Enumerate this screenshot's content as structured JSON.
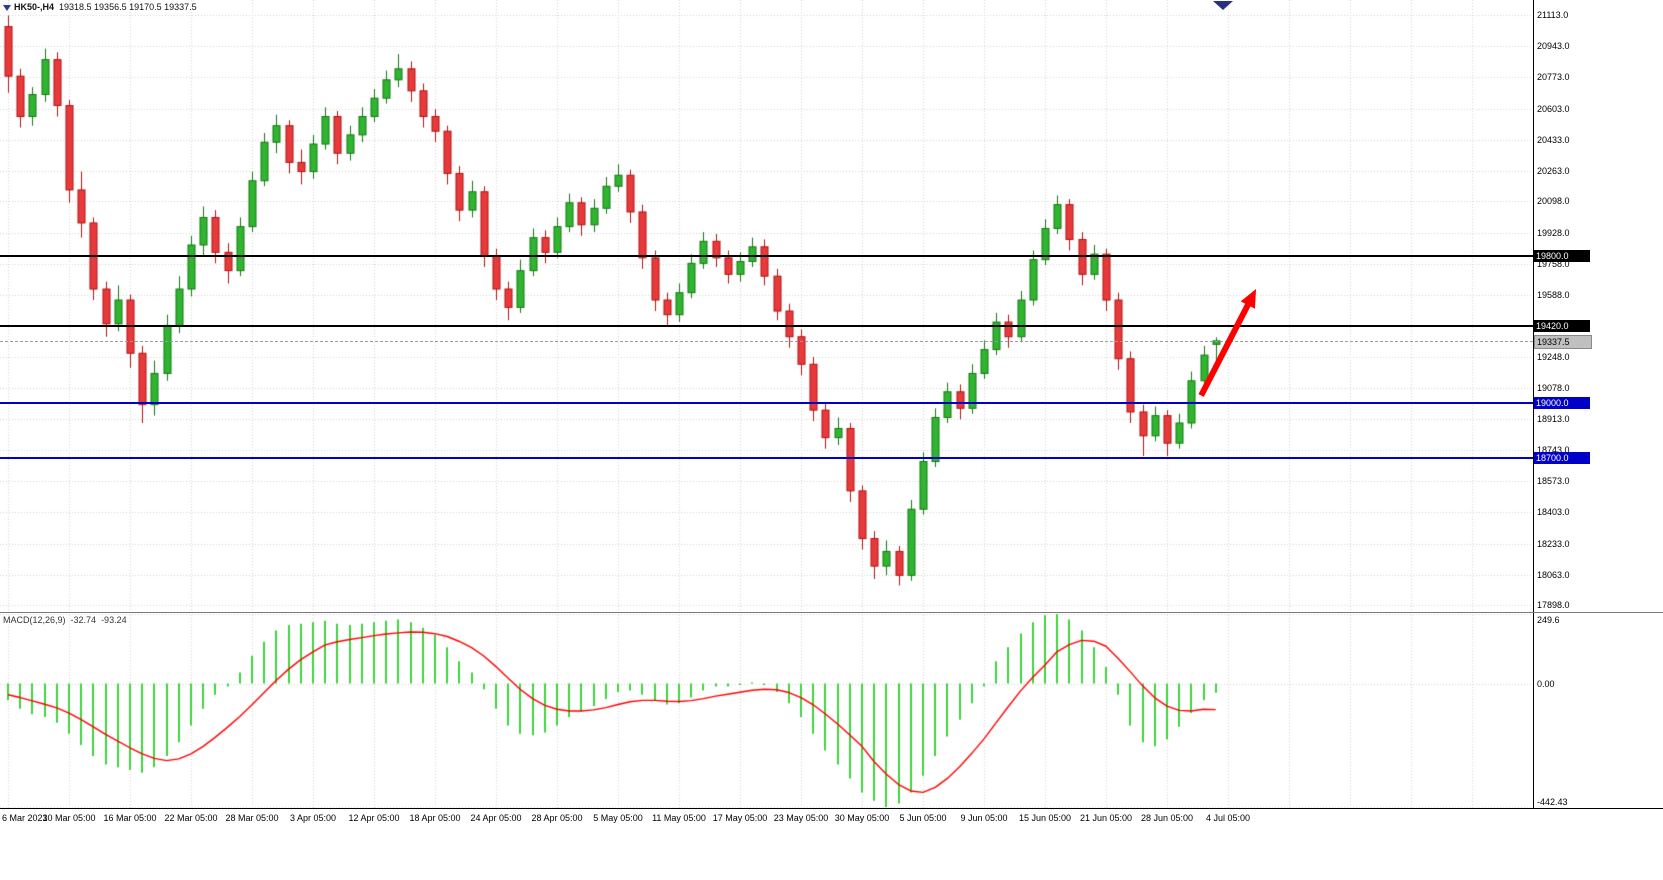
{
  "window": {
    "title_symbol": "HK50-,H4",
    "title_ohlc": "19318.5 19356.5 19170.5 19337.5"
  },
  "colors": {
    "background": "#FFFFFF",
    "grid": "#D4D4D4",
    "up_fill": "#2FB52F",
    "up_border": "#157715",
    "down_fill": "#E83A3A",
    "down_border": "#B01212",
    "hline_black": "#000000",
    "hline_blue": "#0000C8",
    "bid_line": "#9C9CA8",
    "bid_tag_bg": "#C0C0C0",
    "arrow": "#FF0000",
    "axis_text": "#000000"
  },
  "chart_data": [
    {
      "type": "candlestick",
      "symbol": "HK50-",
      "timeframe": "H4",
      "title": "HK50-,H4",
      "x_labels": [
        "6 Mar 2023",
        "10 Mar 05:00",
        "16 Mar 05:00",
        "22 Mar 05:00",
        "28 Mar 05:00",
        "3 Apr 05:00",
        "12 Apr 05:00",
        "18 Apr 05:00",
        "24 Apr 05:00",
        "28 Apr 05:00",
        "5 May 05:00",
        "11 May 05:00",
        "17 May 05:00",
        "23 May 05:00",
        "30 May 05:00",
        "5 Jun 05:00",
        "9 Jun 05:00",
        "15 Jun 05:00",
        "21 Jun 05:00",
        "28 Jun 05:00",
        "4 Jul 05:00"
      ],
      "candles_per_label": 5,
      "ylim": [
        17860,
        21195
      ],
      "y_gridlines": [
        21113.0,
        20943.0,
        20773.0,
        20603.0,
        20433.0,
        20263.0,
        20098.0,
        19928.0,
        19758.0,
        19588.0,
        19248.0,
        19078.0,
        18913.0,
        18743.0,
        18573.0,
        18403.0,
        18233.0,
        18063.0,
        17898.0
      ],
      "candles": [
        [
          21050,
          21110,
          20690,
          20780
        ],
        [
          20780,
          20820,
          20500,
          20560
        ],
        [
          20560,
          20720,
          20510,
          20680
        ],
        [
          20680,
          20930,
          20640,
          20870
        ],
        [
          20870,
          20910,
          20560,
          20620
        ],
        [
          20620,
          20650,
          20090,
          20160
        ],
        [
          20160,
          20260,
          19900,
          19980
        ],
        [
          19980,
          20010,
          19560,
          19620
        ],
        [
          19620,
          19660,
          19360,
          19430
        ],
        [
          19430,
          19640,
          19390,
          19560
        ],
        [
          19560,
          19590,
          19190,
          19270
        ],
        [
          19270,
          19310,
          18890,
          18990
        ],
        [
          18990,
          19230,
          18930,
          19160
        ],
        [
          19160,
          19480,
          19120,
          19420
        ],
        [
          19420,
          19690,
          19380,
          19620
        ],
        [
          19620,
          19910,
          19580,
          19860
        ],
        [
          19860,
          20070,
          19800,
          20010
        ],
        [
          20010,
          20050,
          19760,
          19820
        ],
        [
          19820,
          19870,
          19650,
          19720
        ],
        [
          19720,
          20010,
          19690,
          19960
        ],
        [
          19960,
          20260,
          19930,
          20210
        ],
        [
          20210,
          20470,
          20180,
          20420
        ],
        [
          20420,
          20570,
          20360,
          20510
        ],
        [
          20510,
          20540,
          20250,
          20310
        ],
        [
          20310,
          20380,
          20190,
          20260
        ],
        [
          20260,
          20460,
          20220,
          20410
        ],
        [
          20410,
          20610,
          20380,
          20560
        ],
        [
          20560,
          20590,
          20300,
          20360
        ],
        [
          20360,
          20510,
          20320,
          20460
        ],
        [
          20460,
          20610,
          20420,
          20560
        ],
        [
          20560,
          20710,
          20530,
          20660
        ],
        [
          20660,
          20810,
          20630,
          20760
        ],
        [
          20760,
          20900,
          20720,
          20820
        ],
        [
          20820,
          20860,
          20640,
          20700
        ],
        [
          20700,
          20740,
          20500,
          20560
        ],
        [
          20560,
          20600,
          20420,
          20480
        ],
        [
          20480,
          20510,
          20190,
          20250
        ],
        [
          20250,
          20290,
          19990,
          20050
        ],
        [
          20050,
          20210,
          20010,
          20150
        ],
        [
          20150,
          20180,
          19740,
          19800
        ],
        [
          19800,
          19840,
          19560,
          19620
        ],
        [
          19620,
          19660,
          19450,
          19520
        ],
        [
          19520,
          19780,
          19490,
          19720
        ],
        [
          19720,
          19950,
          19690,
          19900
        ],
        [
          19900,
          19940,
          19760,
          19820
        ],
        [
          19820,
          20010,
          19790,
          19960
        ],
        [
          19960,
          20140,
          19930,
          20090
        ],
        [
          20090,
          20120,
          19910,
          19970
        ],
        [
          19970,
          20110,
          19930,
          20060
        ],
        [
          20060,
          20230,
          20030,
          20180
        ],
        [
          20180,
          20300,
          20150,
          20240
        ],
        [
          20240,
          20270,
          19980,
          20040
        ],
        [
          20040,
          20080,
          19730,
          19790
        ],
        [
          19790,
          19830,
          19500,
          19560
        ],
        [
          19560,
          19600,
          19420,
          19480
        ],
        [
          19480,
          19650,
          19440,
          19600
        ],
        [
          19600,
          19810,
          19570,
          19760
        ],
        [
          19760,
          19930,
          19730,
          19880
        ],
        [
          19880,
          19920,
          19740,
          19790
        ],
        [
          19790,
          19830,
          19650,
          19700
        ],
        [
          19700,
          19820,
          19660,
          19770
        ],
        [
          19770,
          19900,
          19740,
          19850
        ],
        [
          19850,
          19890,
          19640,
          19690
        ],
        [
          19690,
          19730,
          19450,
          19500
        ],
        [
          19500,
          19540,
          19300,
          19360
        ],
        [
          19360,
          19400,
          19150,
          19210
        ],
        [
          19210,
          19250,
          18900,
          18960
        ],
        [
          18960,
          19000,
          18750,
          18810
        ],
        [
          18810,
          18920,
          18770,
          18860
        ],
        [
          18860,
          18890,
          18460,
          18520
        ],
        [
          18520,
          18550,
          18200,
          18260
        ],
        [
          18260,
          18300,
          18040,
          18110
        ],
        [
          18110,
          18250,
          18060,
          18190
        ],
        [
          18190,
          18220,
          18005,
          18060
        ],
        [
          18060,
          18470,
          18030,
          18420
        ],
        [
          18420,
          18730,
          18390,
          18680
        ],
        [
          18680,
          18970,
          18650,
          18920
        ],
        [
          18920,
          19110,
          18890,
          19060
        ],
        [
          19060,
          19100,
          18910,
          18970
        ],
        [
          18970,
          19210,
          18940,
          19160
        ],
        [
          19160,
          19340,
          19130,
          19290
        ],
        [
          19290,
          19490,
          19260,
          19440
        ],
        [
          19440,
          19480,
          19300,
          19360
        ],
        [
          19360,
          19610,
          19330,
          19560
        ],
        [
          19560,
          19830,
          19530,
          19780
        ],
        [
          19780,
          20000,
          19750,
          19950
        ],
        [
          19950,
          20130,
          19920,
          20080
        ],
        [
          20080,
          20110,
          19830,
          19890
        ],
        [
          19890,
          19930,
          19640,
          19700
        ],
        [
          19700,
          19860,
          19670,
          19810
        ],
        [
          19810,
          19840,
          19500,
          19560
        ],
        [
          19560,
          19600,
          19180,
          19240
        ],
        [
          19240,
          19280,
          18890,
          18950
        ],
        [
          18950,
          18990,
          18710,
          18820
        ],
        [
          18820,
          18980,
          18790,
          18930
        ],
        [
          18930,
          18960,
          18710,
          18780
        ],
        [
          18780,
          18940,
          18750,
          18890
        ],
        [
          18890,
          19170,
          18860,
          19120
        ],
        [
          19120,
          19310,
          19090,
          19260
        ],
        [
          19318.5,
          19356.5,
          19170.5,
          19337.5
        ]
      ],
      "hlines": [
        {
          "price": 19800.0,
          "label": "19800.0",
          "color": "#000000",
          "tag_bg": "#000000",
          "tag_fg": "#FFFFFF"
        },
        {
          "price": 19420.0,
          "label": "19420.0",
          "color": "#000000",
          "tag_bg": "#000000",
          "tag_fg": "#FFFFFF"
        },
        {
          "price": 19000.0,
          "label": "19000.0",
          "color": "#0000C8",
          "tag_bg": "#0000C8",
          "tag_fg": "#FFFFFF"
        },
        {
          "price": 18700.0,
          "label": "18700.0",
          "color": "#0000C8",
          "tag_bg": "#0000C8",
          "tag_fg": "#FFFFFF"
        }
      ],
      "bid": {
        "price": 19337.5,
        "label": "19337.5"
      },
      "arrow": {
        "from_candle": 97.8,
        "from_price": 19040,
        "to_candle": 102.3,
        "to_price": 19620,
        "color": "#FF0000"
      }
    },
    {
      "type": "bar",
      "title": "MACD(12,26,9)",
      "value_main": "-32.74",
      "value_signal": "-93.24",
      "ylim": [
        -442.43,
        249.6
      ],
      "hist_color": "#3FD23F",
      "signal_color": "#FF0000",
      "axis_ticks": [
        {
          "value": 249.6,
          "label": "249.6"
        },
        {
          "value": 0,
          "label": "0.00"
        },
        {
          "value": -442.43,
          "label": "-442.43"
        }
      ],
      "histogram": [
        -60,
        -90,
        -110,
        -120,
        -140,
        -180,
        -220,
        -260,
        -290,
        -300,
        -310,
        -320,
        -300,
        -260,
        -210,
        -150,
        -90,
        -40,
        -10,
        40,
        100,
        150,
        190,
        210,
        215,
        220,
        225,
        215,
        210,
        215,
        220,
        225,
        230,
        220,
        200,
        175,
        130,
        80,
        40,
        -20,
        -90,
        -150,
        -180,
        -185,
        -175,
        -150,
        -120,
        -100,
        -80,
        -55,
        -30,
        -25,
        -40,
        -60,
        -75,
        -70,
        -50,
        -25,
        -10,
        -10,
        -5,
        5,
        -5,
        -30,
        -70,
        -120,
        -180,
        -240,
        -290,
        -340,
        -390,
        -420,
        -442,
        -430,
        -390,
        -330,
        -260,
        -190,
        -130,
        -70,
        -10,
        80,
        130,
        180,
        220,
        245,
        250,
        230,
        190,
        130,
        60,
        -40,
        -150,
        -210,
        -225,
        -200,
        -155,
        -105,
        -60,
        -32.74
      ],
      "signal": [
        -40,
        -50,
        -62,
        -74,
        -87,
        -106,
        -129,
        -155,
        -182,
        -206,
        -230,
        -252,
        -268,
        -276,
        -270,
        -252,
        -225,
        -192,
        -156,
        -118,
        -76,
        -32,
        12,
        52,
        86,
        114,
        139,
        150,
        158,
        165,
        172,
        178,
        182,
        185,
        184,
        179,
        169,
        151,
        129,
        99,
        61,
        19,
        -21,
        -54,
        -78,
        -92,
        -98,
        -98,
        -94,
        -86,
        -75,
        -65,
        -60,
        -60,
        -63,
        -64,
        -61,
        -54,
        -45,
        -38,
        -31,
        -24,
        -20,
        -22,
        -32,
        -50,
        -76,
        -109,
        -145,
        -184,
        -225,
        -280,
        -325,
        -362,
        -385,
        -390,
        -372,
        -340,
        -298,
        -250,
        -198,
        -140,
        -82,
        -26,
        23,
        67,
        115,
        140,
        155,
        152,
        134,
        90,
        42,
        -8,
        -51,
        -81,
        -96,
        -98,
        -92,
        -93.24
      ]
    }
  ]
}
